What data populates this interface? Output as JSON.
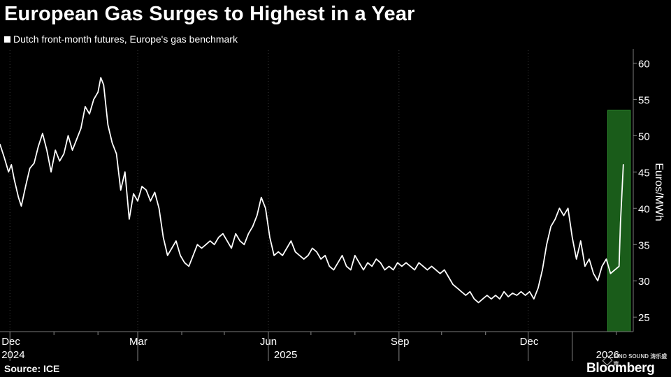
{
  "chart_data": {
    "type": "line",
    "title": "European Gas Surges to Highest in a Year",
    "legend": "Dutch front-month futures, Europe's gas benchmark",
    "ylabel": "Euros/MWh",
    "source": "Source: ICE",
    "ylim": [
      23,
      61
    ],
    "yticks": [
      25,
      30,
      35,
      40,
      45,
      50,
      55,
      60
    ],
    "xlim": [
      "2024-11-24",
      "2026-02-13"
    ],
    "month_ticks": [
      {
        "date": "2024-12-01",
        "label": "Dec"
      },
      {
        "date": "2025-03-01",
        "label": "Mar"
      },
      {
        "date": "2025-06-01",
        "label": "Jun"
      },
      {
        "date": "2025-09-01",
        "label": "Sep"
      },
      {
        "date": "2025-12-01",
        "label": "Dec"
      }
    ],
    "year_ticks": [
      {
        "date": "2024-12-01",
        "label": "2024"
      },
      {
        "date": "2025-06-01",
        "label": "2025"
      },
      {
        "date": "2026-01-01",
        "label": "2026"
      }
    ],
    "minor_ticks": [
      "2025-01-01",
      "2025-02-01",
      "2025-04-01",
      "2025-05-01",
      "2025-07-01",
      "2025-08-01",
      "2025-10-01",
      "2025-11-01",
      "2026-02-01"
    ],
    "highlight": {
      "from": "2026-01-26",
      "to": "2026-02-11",
      "top": 53.5,
      "color": "#1a5c1a"
    },
    "series": [
      {
        "color": "#ffffff",
        "points": [
          [
            "2024-11-24",
            48.8
          ],
          [
            "2024-11-27",
            47.0
          ],
          [
            "2024-11-30",
            45.0
          ],
          [
            "2024-12-02",
            46.0
          ],
          [
            "2024-12-04",
            44.0
          ],
          [
            "2024-12-07",
            41.5
          ],
          [
            "2024-12-09",
            40.3
          ],
          [
            "2024-12-12",
            43.0
          ],
          [
            "2024-12-15",
            45.5
          ],
          [
            "2024-12-18",
            46.2
          ],
          [
            "2024-12-21",
            48.5
          ],
          [
            "2024-12-24",
            50.3
          ],
          [
            "2024-12-27",
            48.0
          ],
          [
            "2024-12-30",
            45.0
          ],
          [
            "2025-01-02",
            48.0
          ],
          [
            "2025-01-05",
            46.5
          ],
          [
            "2025-01-08",
            47.5
          ],
          [
            "2025-01-11",
            50.0
          ],
          [
            "2025-01-14",
            48.0
          ],
          [
            "2025-01-17",
            49.5
          ],
          [
            "2025-01-20",
            51.0
          ],
          [
            "2025-01-23",
            54.0
          ],
          [
            "2025-01-26",
            53.0
          ],
          [
            "2025-01-29",
            55.0
          ],
          [
            "2025-02-01",
            56.0
          ],
          [
            "2025-02-03",
            58.0
          ],
          [
            "2025-02-05",
            57.0
          ],
          [
            "2025-02-08",
            51.5
          ],
          [
            "2025-02-11",
            49.0
          ],
          [
            "2025-02-14",
            47.5
          ],
          [
            "2025-02-17",
            42.5
          ],
          [
            "2025-02-20",
            45.0
          ],
          [
            "2025-02-23",
            38.5
          ],
          [
            "2025-02-26",
            42.0
          ],
          [
            "2025-03-01",
            41.0
          ],
          [
            "2025-03-04",
            43.0
          ],
          [
            "2025-03-07",
            42.5
          ],
          [
            "2025-03-10",
            41.0
          ],
          [
            "2025-03-13",
            42.2
          ],
          [
            "2025-03-16",
            40.0
          ],
          [
            "2025-03-19",
            36.0
          ],
          [
            "2025-03-22",
            33.5
          ],
          [
            "2025-03-25",
            34.5
          ],
          [
            "2025-03-28",
            35.5
          ],
          [
            "2025-03-31",
            33.5
          ],
          [
            "2025-04-03",
            32.5
          ],
          [
            "2025-04-06",
            32.0
          ],
          [
            "2025-04-09",
            33.5
          ],
          [
            "2025-04-12",
            35.0
          ],
          [
            "2025-04-15",
            34.5
          ],
          [
            "2025-04-18",
            35.0
          ],
          [
            "2025-04-21",
            35.5
          ],
          [
            "2025-04-24",
            35.0
          ],
          [
            "2025-04-27",
            36.0
          ],
          [
            "2025-04-30",
            36.5
          ],
          [
            "2025-05-03",
            35.5
          ],
          [
            "2025-05-06",
            34.5
          ],
          [
            "2025-05-09",
            36.5
          ],
          [
            "2025-05-12",
            35.5
          ],
          [
            "2025-05-15",
            35.0
          ],
          [
            "2025-05-18",
            36.5
          ],
          [
            "2025-05-21",
            37.5
          ],
          [
            "2025-05-24",
            39.0
          ],
          [
            "2025-05-27",
            41.5
          ],
          [
            "2025-05-30",
            40.0
          ],
          [
            "2025-06-02",
            36.0
          ],
          [
            "2025-06-05",
            33.5
          ],
          [
            "2025-06-08",
            34.0
          ],
          [
            "2025-06-11",
            33.5
          ],
          [
            "2025-06-14",
            34.5
          ],
          [
            "2025-06-17",
            35.5
          ],
          [
            "2025-06-20",
            34.0
          ],
          [
            "2025-06-23",
            33.5
          ],
          [
            "2025-06-26",
            33.0
          ],
          [
            "2025-06-29",
            33.5
          ],
          [
            "2025-07-02",
            34.5
          ],
          [
            "2025-07-05",
            34.0
          ],
          [
            "2025-07-08",
            33.0
          ],
          [
            "2025-07-11",
            33.5
          ],
          [
            "2025-07-14",
            32.0
          ],
          [
            "2025-07-17",
            31.5
          ],
          [
            "2025-07-20",
            32.5
          ],
          [
            "2025-07-23",
            33.5
          ],
          [
            "2025-07-26",
            32.0
          ],
          [
            "2025-07-29",
            31.5
          ],
          [
            "2025-08-01",
            33.5
          ],
          [
            "2025-08-04",
            32.5
          ],
          [
            "2025-08-07",
            31.5
          ],
          [
            "2025-08-10",
            32.5
          ],
          [
            "2025-08-13",
            32.0
          ],
          [
            "2025-08-16",
            33.0
          ],
          [
            "2025-08-19",
            32.5
          ],
          [
            "2025-08-22",
            31.5
          ],
          [
            "2025-08-25",
            32.0
          ],
          [
            "2025-08-28",
            31.5
          ],
          [
            "2025-08-31",
            32.5
          ],
          [
            "2025-09-03",
            32.0
          ],
          [
            "2025-09-06",
            32.5
          ],
          [
            "2025-09-09",
            32.0
          ],
          [
            "2025-09-12",
            31.5
          ],
          [
            "2025-09-15",
            32.5
          ],
          [
            "2025-09-18",
            32.0
          ],
          [
            "2025-09-21",
            31.5
          ],
          [
            "2025-09-24",
            32.0
          ],
          [
            "2025-09-27",
            31.5
          ],
          [
            "2025-09-30",
            31.0
          ],
          [
            "2025-10-03",
            31.5
          ],
          [
            "2025-10-06",
            30.5
          ],
          [
            "2025-10-09",
            29.5
          ],
          [
            "2025-10-12",
            29.0
          ],
          [
            "2025-10-15",
            28.5
          ],
          [
            "2025-10-18",
            28.0
          ],
          [
            "2025-10-21",
            28.5
          ],
          [
            "2025-10-24",
            27.5
          ],
          [
            "2025-10-27",
            27.0
          ],
          [
            "2025-10-30",
            27.5
          ],
          [
            "2025-11-02",
            28.0
          ],
          [
            "2025-11-05",
            27.5
          ],
          [
            "2025-11-08",
            28.0
          ],
          [
            "2025-11-11",
            27.5
          ],
          [
            "2025-11-14",
            28.5
          ],
          [
            "2025-11-17",
            27.8
          ],
          [
            "2025-11-20",
            28.3
          ],
          [
            "2025-11-23",
            28.0
          ],
          [
            "2025-11-26",
            28.5
          ],
          [
            "2025-11-29",
            28.0
          ],
          [
            "2025-12-02",
            28.5
          ],
          [
            "2025-12-05",
            27.5
          ],
          [
            "2025-12-08",
            29.0
          ],
          [
            "2025-12-11",
            31.5
          ],
          [
            "2025-12-14",
            35.0
          ],
          [
            "2025-12-17",
            37.5
          ],
          [
            "2025-12-20",
            38.5
          ],
          [
            "2025-12-23",
            40.0
          ],
          [
            "2025-12-26",
            39.0
          ],
          [
            "2025-12-29",
            40.0
          ],
          [
            "2026-01-01",
            36.0
          ],
          [
            "2026-01-04",
            33.0
          ],
          [
            "2026-01-07",
            35.5
          ],
          [
            "2026-01-10",
            32.0
          ],
          [
            "2026-01-13",
            33.0
          ],
          [
            "2026-01-16",
            31.0
          ],
          [
            "2026-01-19",
            30.0
          ],
          [
            "2026-01-22",
            32.0
          ],
          [
            "2026-01-25",
            33.0
          ],
          [
            "2026-01-28",
            31.0
          ],
          [
            "2026-01-31",
            31.5
          ],
          [
            "2026-02-03",
            32.0
          ],
          [
            "2026-02-04",
            38.0
          ],
          [
            "2026-02-06",
            46.0
          ]
        ]
      }
    ]
  },
  "watermark_text": "SINO SOUND 涛乐盛声",
  "brand": "Bloomberg"
}
